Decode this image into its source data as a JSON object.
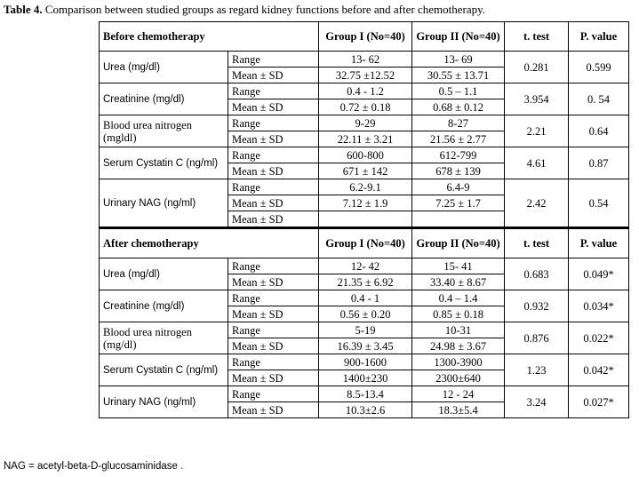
{
  "caption": {
    "label": "Table 4.",
    "text": " Comparison between studied groups as regard kidney functions before and after chemotherapy."
  },
  "before": {
    "header": [
      "Before chemotherapy",
      "Group I (No=40)",
      "Group II (No=40)",
      "t. test",
      "P. value"
    ],
    "rows": [
      {
        "param": "Urea (mg/dl)",
        "sans": true,
        "range": [
          "Range",
          "13- 62",
          "13- 69"
        ],
        "mean": [
          "Mean ± SD",
          "32.75 ±12.52",
          "30.55 ± 13.71"
        ],
        "t": "0.281",
        "p": "0.599"
      },
      {
        "param": "Creatinine (mg/dl)",
        "sans": true,
        "range": [
          "Range",
          "0.4 - 1.2",
          "0.5 – 1.1"
        ],
        "mean": [
          "Mean ± SD",
          "0.72 ± 0.18",
          "0.68 ± 0.12"
        ],
        "t": "3.954",
        "p": "0. 54"
      },
      {
        "param": "Blood urea nitrogen (mgldl)",
        "sans": false,
        "range": [
          "Range",
          "9-29",
          "8-27"
        ],
        "mean": [
          "Mean ± SD",
          "22.11 ± 3.21",
          "21.56 ± 2.77"
        ],
        "t": "2.21",
        "p": "0.64"
      },
      {
        "param": "Serum Cystatin C (ng/ml)",
        "sans": true,
        "range": [
          "Range",
          "600-800",
          "612-799"
        ],
        "mean": [
          "Mean ± SD",
          "671 ± 142",
          "678 ± 139"
        ],
        "t": "4.61",
        "p": "0.87"
      },
      {
        "param": "Urinary NAG (ng/ml)",
        "sans": true,
        "range": [
          "Range",
          "6.2-9.1",
          "6.4-9"
        ],
        "mean": [
          "Mean ± SD",
          "7.12 ± 1.9",
          "7.25 ± 1.7"
        ],
        "extra": [
          "Mean ± SD",
          "",
          ""
        ],
        "t": "2.42",
        "p": "0.54"
      }
    ]
  },
  "after": {
    "header": [
      "After chemotherapy",
      "Group I (No=40)",
      "Group II (No=40)",
      "t. test",
      "P. value"
    ],
    "rows": [
      {
        "param": "Urea (mg/dl)",
        "sans": true,
        "range": [
          "Range",
          "12- 42",
          "15- 41"
        ],
        "mean": [
          "Mean ± SD",
          "21.35 ± 6.92",
          "33.40 ± 8.67"
        ],
        "t": "0.683",
        "p": "0.049*"
      },
      {
        "param": "Creatinine (mg/dl)",
        "sans": true,
        "range": [
          "Range",
          "0.4 - 1",
          "0.4 – 1.4"
        ],
        "mean": [
          "Mean ± SD",
          "0.56 ± 0.20",
          "0.85 ± 0.18"
        ],
        "t": "0.932",
        "p": "0.034*"
      },
      {
        "param": "Blood urea nitrogen (mg/dl)",
        "sans": false,
        "range": [
          "Range",
          "5-19",
          "10-31"
        ],
        "mean": [
          "Mean ± SD",
          "16.39 ± 3.45",
          "24.98 ± 3.67"
        ],
        "t": "0.876",
        "p": "0.022*"
      },
      {
        "param": "Serum Cystatin C (ng/ml)",
        "sans": true,
        "range": [
          "Range",
          "900-1600",
          "1300-3900"
        ],
        "mean": [
          "Mean ± SD",
          "1400±230",
          "2300±640"
        ],
        "t": "1.23",
        "p": "0.042*"
      },
      {
        "param": "Urinary NAG (ng/ml)",
        "sans": true,
        "range": [
          "Range",
          "8.5-13.4",
          "12 - 24"
        ],
        "mean": [
          "Mean ± SD",
          "10.3±2.6",
          "18.3±5.4"
        ],
        "t": "3.24",
        "p": "0.027*"
      }
    ]
  },
  "footnote": "NAG = acetyl-beta-D-glucosaminidase  ."
}
